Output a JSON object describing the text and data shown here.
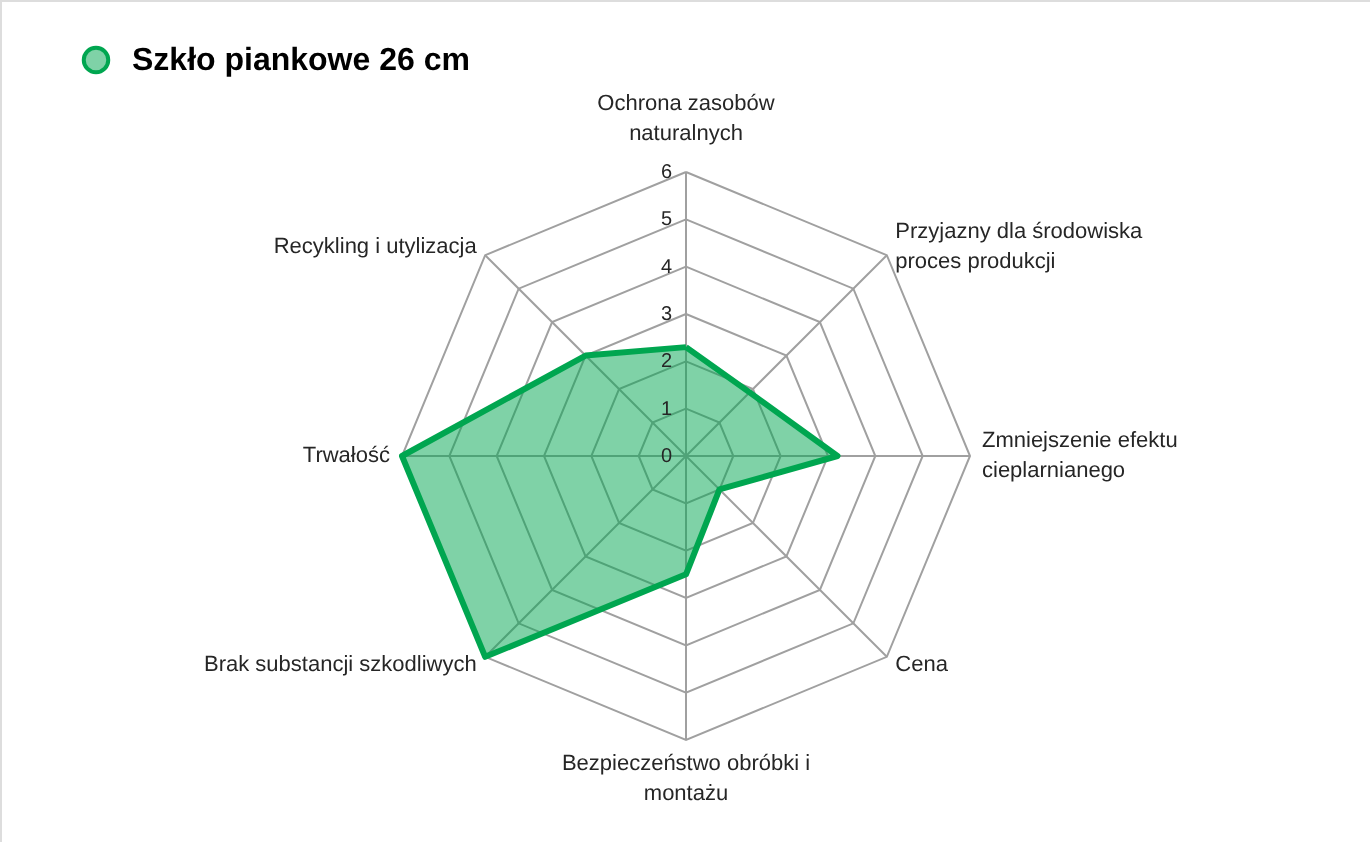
{
  "chart_data": {
    "type": "radar",
    "categories": [
      "Ochrona zasobów naturalnych",
      "Przyjazny dla środowiska proces produkcji",
      "Zmniejszenie efektu cieplarnianego",
      "Cena",
      "Bezpieczeństwo obróbki i montażu",
      "Brak substancji szkodliwych",
      "Trwałość",
      "Recykling i utylizacja"
    ],
    "series": [
      {
        "name": "Szkło piankowe 26 cm",
        "color": "#00a650",
        "values": [
          2.3,
          1.9,
          3.2,
          1,
          2.5,
          6,
          6,
          3
        ]
      }
    ],
    "ylim": [
      0,
      6
    ],
    "yticks": [
      0,
      1,
      2,
      3,
      4,
      5,
      6
    ],
    "grid": true,
    "legend": "top left"
  }
}
